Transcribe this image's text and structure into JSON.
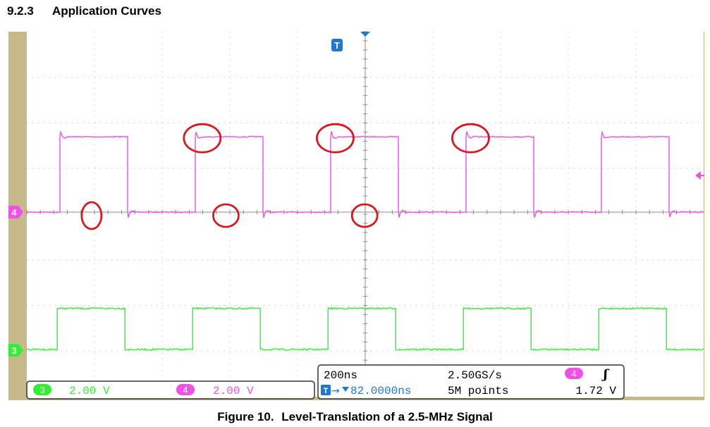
{
  "heading": {
    "number": "9.2.3",
    "title": "Application Curves"
  },
  "caption": {
    "number": "Figure 10.",
    "title": "Level-Translation of a 2.5-MHz Signal"
  },
  "colors": {
    "ch4": "#f050e8",
    "ch3": "#33ee33",
    "trigger": "#1e78d2",
    "frame": "#c8b98a",
    "grid": "#b4b4b4",
    "annotation": "#d81820",
    "screen": "#ffffff"
  },
  "scope": {
    "ch3_readout": {
      "badge": "3",
      "scale": "2.00 V"
    },
    "ch4_readout": {
      "badge": "4",
      "scale": "2.00 V"
    },
    "timebase": "200ns",
    "sample_rate": "2.50GS/s",
    "trigger_position": "82.0000ns",
    "record_length": "5M points",
    "trigger_source": "4",
    "trigger_slope_symbol": "ʃ",
    "trigger_level": "1.72 V",
    "trigger_marker": "T",
    "ch4_marker": "4",
    "ch3_marker": "3"
  },
  "chart_data": {
    "type": "line",
    "title": "",
    "xlabel": "",
    "ylabel": "",
    "x_unit": "ns",
    "x_per_division": 200,
    "x_divisions": 10,
    "y_divisions": 8,
    "grid": true,
    "signal_frequency_mhz": 2.5,
    "series": [
      {
        "name": "4",
        "volts_per_division": 2.0,
        "low_v": 0.0,
        "high_v": 3.3,
        "rising_edges_ns": [
          98,
          498,
          898,
          1298,
          1698
        ],
        "falling_edges_ns": [
          298,
          698,
          1098,
          1498,
          1898
        ],
        "ringing": true
      },
      {
        "name": "3",
        "volts_per_division": 2.0,
        "low_v": 0.0,
        "high_v": 1.8,
        "rising_edges_ns": [
          90,
          490,
          890,
          1290,
          1690
        ],
        "falling_edges_ns": [
          290,
          690,
          1090,
          1490,
          1890
        ],
        "ringing": false
      }
    ],
    "annotations": [
      {
        "type": "ellipse",
        "at_ns": 183,
        "edge": "falling",
        "channel": "4"
      },
      {
        "type": "ellipse",
        "at_ns": 510,
        "edge": "rising",
        "channel": "4"
      },
      {
        "type": "ellipse",
        "at_ns": 580,
        "edge": "falling",
        "channel": "4"
      },
      {
        "type": "ellipse",
        "at_ns": 903,
        "edge": "rising",
        "channel": "4"
      },
      {
        "type": "ellipse",
        "at_ns": 990,
        "edge": "falling",
        "channel": "4"
      },
      {
        "type": "ellipse",
        "at_ns": 1303,
        "edge": "rising",
        "channel": "4"
      }
    ]
  }
}
